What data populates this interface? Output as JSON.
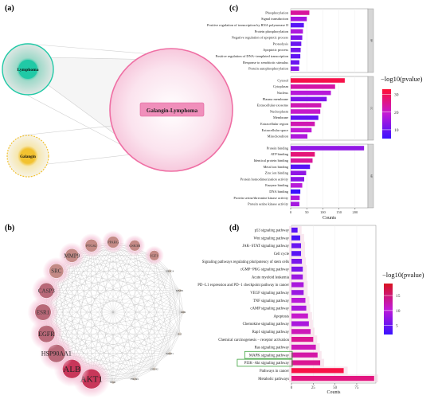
{
  "panels": {
    "a": "(a)",
    "b": "(b)",
    "c": "(c)",
    "d": "(d)"
  },
  "venn": {
    "lymphoma_label": "Lymphoma",
    "galangin_label": "Galangin",
    "intersection_label": "Galangin-Lymphoma",
    "colors": {
      "lymphoma": "#20c9a6",
      "galangin": "#f2c230",
      "intersection": "#ef6fa4"
    }
  },
  "network": {
    "nodes": [
      {
        "name": "AKT1",
        "rank": 1
      },
      {
        "name": "ALB",
        "rank": 2
      },
      {
        "name": "HSP90AA1",
        "rank": 3
      },
      {
        "name": "EGFR",
        "rank": 4
      },
      {
        "name": "ESR1",
        "rank": 5
      },
      {
        "name": "CASP3",
        "rank": 6
      },
      {
        "name": "SRC",
        "rank": 7
      },
      {
        "name": "MMP9",
        "rank": 8
      },
      {
        "name": "PTGS2",
        "rank": 9
      },
      {
        "name": "PPARG",
        "rank": 10
      },
      {
        "name": "GSK3B",
        "rank": 11
      },
      {
        "name": "IGF1",
        "rank": 12
      },
      {
        "name": "NR3C4",
        "rank": 13
      },
      {
        "name": "MMP2",
        "rank": 14
      },
      {
        "name": "KDR",
        "rank": 15
      },
      {
        "name": "IL2",
        "rank": 16
      },
      {
        "name": "PARP1",
        "rank": 17
      },
      {
        "name": "CDC42",
        "rank": 18
      },
      {
        "name": "PIK3R1",
        "rank": 19
      },
      {
        "name": "PIM1",
        "rank": 20
      }
    ]
  },
  "chart_data": [
    {
      "panel": "c",
      "type": "bar",
      "orientation": "horizontal",
      "xlabel": "Counts",
      "xlim": [
        0,
        240
      ],
      "xticks": [
        0,
        50,
        100,
        150,
        200
      ],
      "legend_title": "−log10(pvalue)",
      "legend_ticks": [
        10,
        20,
        30
      ],
      "color_range": [
        5,
        33
      ],
      "facets": [
        {
          "strip": "BP",
          "categories": [
            "Phosphorylation",
            "Signal transduction",
            "Positive regulation of transcription by RNA polymerase II",
            "Protein phosphorylation",
            "Negative regulation of apoptotic process",
            "Proteolysis",
            "Apoptotic process",
            "Positive regulation of DNA−templated transcription",
            "Response to xenobiotic stimulus",
            "Protein autophosphorylation"
          ],
          "values": [
            58,
            50,
            41,
            38,
            36,
            33,
            31,
            30,
            27,
            26
          ],
          "neglog10p": [
            24,
            16,
            8,
            17,
            12,
            10,
            11,
            9,
            10,
            13
          ]
        },
        {
          "strip": "CC",
          "categories": [
            "Cytosol",
            "Cytoplasm",
            "Nucleus",
            "Plasma membrane",
            "Extracellular exosome",
            "Nucleoplasm",
            "Membrane",
            "Extracellular region",
            "Extracellular space",
            "Mitochondrion"
          ],
          "values": [
            168,
            138,
            125,
            112,
            95,
            92,
            86,
            75,
            65,
            52
          ],
          "neglog10p": [
            31,
            23,
            18,
            12,
            22,
            20,
            9,
            22,
            19,
            17
          ]
        },
        {
          "strip": "MF",
          "categories": [
            "Protein binding",
            "ATP binding",
            "Identical protein binding",
            "Metal ion binding",
            "Zinc ion binding",
            "Protein homodimerization activity",
            "Enzyme binding",
            "DNA binding",
            "Protein serine/threonine kinase activity",
            "Protein serine kinase activity"
          ],
          "values": [
            228,
            75,
            68,
            60,
            48,
            42,
            36,
            30,
            28,
            27
          ],
          "neglog10p": [
            14,
            27,
            24,
            8,
            14,
            13,
            18,
            5,
            17,
            16
          ]
        }
      ]
    },
    {
      "panel": "d",
      "type": "bar",
      "orientation": "horizontal",
      "xlabel": "Counts",
      "xlim": [
        0,
        97
      ],
      "xticks": [
        0,
        25,
        50,
        75
      ],
      "legend_title": "−log10(pvalue)",
      "legend_ticks": [
        5,
        10,
        15
      ],
      "color_range": [
        2,
        19
      ],
      "categories": [
        "p53 signaling pathway",
        "Wnt signaling pathway",
        "JAK−STAT signaling pathway",
        "Cell cycle",
        "Signaling pathways regulating pluripotency of stem cells",
        "cGMP−PKG signaling pathway",
        "Acute myeloid leukemia",
        "PD−L1 expression and PD−1 checkpoint pathway in cancer",
        "VEGF signaling pathway",
        "TNF signaling pathway",
        "cAMP signaling pathway",
        "Apoptosis",
        "Chemokine signaling pathway",
        "Rap1 signaling pathway",
        "Chemical carcinogenesis − receptor activation",
        "Ras signaling pathway",
        "MAPK signaling pathway",
        "PI3K−Akt signaling pathway",
        "Pathways in cancer",
        "Metabolic pathways"
      ],
      "values": [
        7,
        10,
        11,
        11,
        12,
        13,
        13,
        14,
        14,
        16,
        17,
        19,
        20,
        22,
        25,
        28,
        30,
        33,
        60,
        95
      ],
      "neglog10p": [
        4,
        3,
        5,
        4,
        6,
        6,
        8,
        9,
        8,
        10,
        9,
        11,
        9,
        12,
        14,
        12,
        13,
        14,
        18,
        15
      ],
      "highlighted": [
        "MAPK signaling pathway",
        "PI3K−Akt signaling pathway"
      ]
    }
  ]
}
